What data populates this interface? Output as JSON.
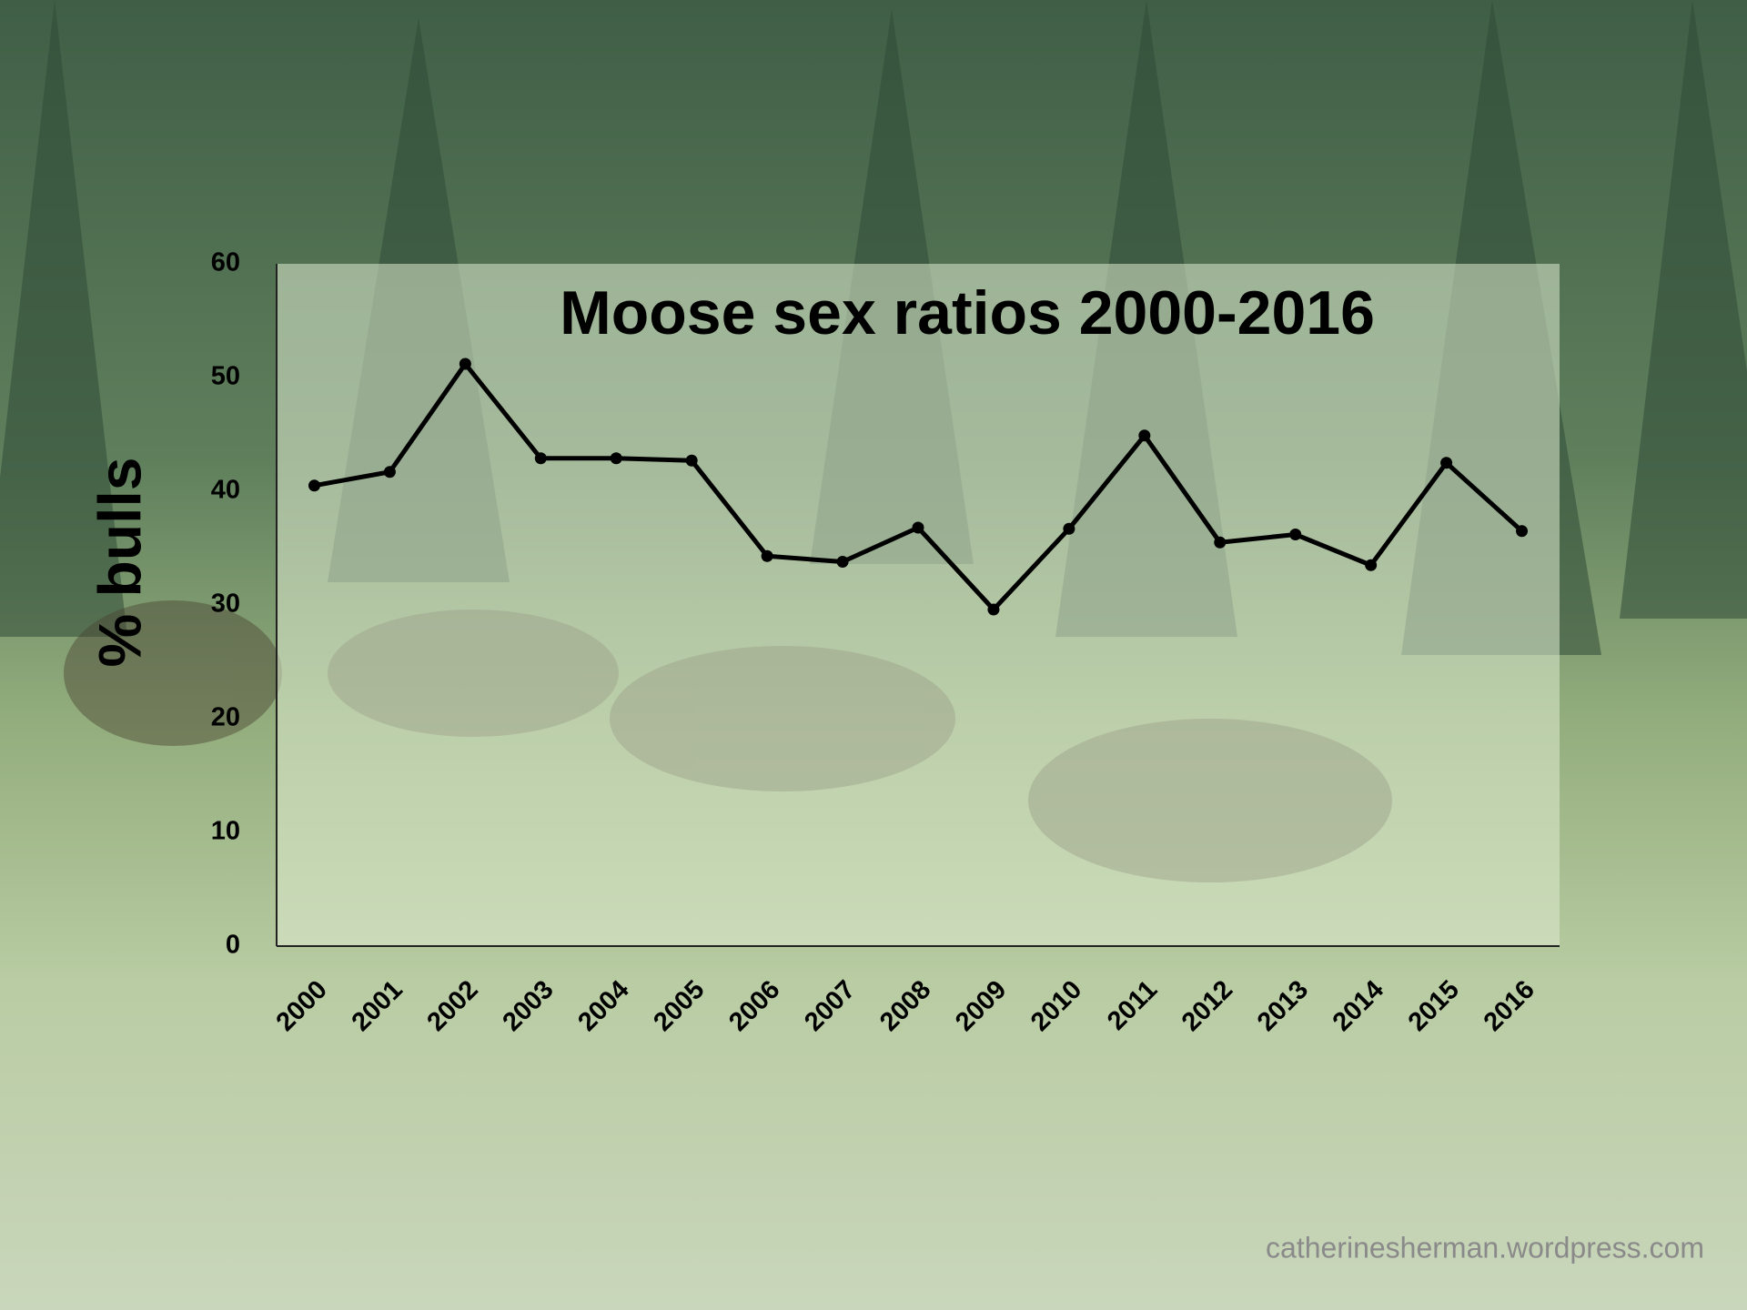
{
  "chart_data": {
    "type": "line",
    "title": "Moose sex ratios 2000-2016",
    "y_label": "% bulls",
    "categories": [
      "2000",
      "2001",
      "2002",
      "2003",
      "2004",
      "2005",
      "2006",
      "2007",
      "2008",
      "2009",
      "2010",
      "2011",
      "2012",
      "2013",
      "2014",
      "2015",
      "2016"
    ],
    "values": [
      40.5,
      41.7,
      51.2,
      42.9,
      42.9,
      42.7,
      34.3,
      33.8,
      36.8,
      29.6,
      36.7,
      44.9,
      35.5,
      36.2,
      33.5,
      42.5,
      36.5
    ],
    "color": "#000000",
    "ylim": [
      0,
      60
    ],
    "yticks": [
      0,
      10,
      20,
      30,
      40,
      50,
      60
    ],
    "grid": false,
    "watermark": "catherinesherman.wordpress.com"
  }
}
